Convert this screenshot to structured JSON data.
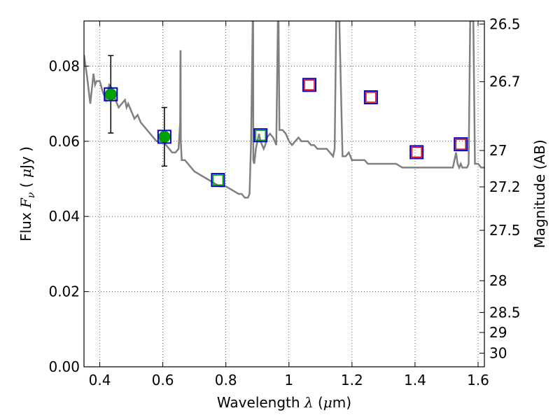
{
  "chart_data": {
    "type": "scatter",
    "xlabel_parts": {
      "pre": "Wavelength ",
      "lambda": "λ",
      "open": " (",
      "mu": "μ",
      "unit": "m)"
    },
    "ylabel_parts": {
      "pre": "Flux ",
      "F": "F",
      "nu": "ν",
      "open": " ( ",
      "mu": "μ",
      "unit": "Jy )"
    },
    "y2label": "Magnitude (AB)",
    "xlim": [
      0.35,
      1.62
    ],
    "ylim": [
      0.0,
      0.092
    ],
    "grid": true,
    "x_ticks": [
      {
        "value": 0.4,
        "label": "0.4"
      },
      {
        "value": 0.6,
        "label": "0.6"
      },
      {
        "value": 0.8,
        "label": "0.8"
      },
      {
        "value": 1.0,
        "label": "1"
      },
      {
        "value": 1.2,
        "label": "1.2"
      },
      {
        "value": 1.4,
        "label": "1.4"
      },
      {
        "value": 1.6,
        "label": "1.6"
      }
    ],
    "y_ticks": [
      {
        "value": 0.0,
        "label": "0.00"
      },
      {
        "value": 0.02,
        "label": "0.02"
      },
      {
        "value": 0.04,
        "label": "0.04"
      },
      {
        "value": 0.06,
        "label": "0.06"
      },
      {
        "value": 0.08,
        "label": "0.08"
      }
    ],
    "y2_ticks": [
      {
        "mag": 26.5,
        "label": "26.5"
      },
      {
        "mag": 26.7,
        "label": "26.7"
      },
      {
        "mag": 27.0,
        "label": "27"
      },
      {
        "mag": 27.2,
        "label": "27.2"
      },
      {
        "mag": 27.5,
        "label": "27.5"
      },
      {
        "mag": 28.0,
        "label": "28"
      },
      {
        "mag": 28.5,
        "label": "28.5"
      },
      {
        "mag": 29.0,
        "label": "29"
      },
      {
        "mag": 30.0,
        "label": "30"
      }
    ],
    "sed_model": {
      "name": "template spectrum",
      "color": "#808080",
      "x": [
        0.35,
        0.36,
        0.37,
        0.375,
        0.38,
        0.385,
        0.39,
        0.4,
        0.41,
        0.42,
        0.43,
        0.44,
        0.45,
        0.46,
        0.47,
        0.48,
        0.485,
        0.49,
        0.5,
        0.51,
        0.52,
        0.53,
        0.54,
        0.55,
        0.56,
        0.57,
        0.58,
        0.59,
        0.6,
        0.61,
        0.62,
        0.63,
        0.64,
        0.65,
        0.655,
        0.656,
        0.6565,
        0.657,
        0.66,
        0.67,
        0.68,
        0.69,
        0.7,
        0.72,
        0.74,
        0.76,
        0.78,
        0.8,
        0.82,
        0.84,
        0.85,
        0.86,
        0.87,
        0.875,
        0.88,
        0.885,
        0.886,
        0.8865,
        0.887,
        0.89,
        0.895,
        0.9,
        0.905,
        0.91,
        0.92,
        0.925,
        0.93,
        0.94,
        0.95,
        0.96,
        0.965,
        0.966,
        0.967,
        0.97,
        0.98,
        0.99,
        1.0,
        1.01,
        1.02,
        1.03,
        1.04,
        1.05,
        1.06,
        1.07,
        1.08,
        1.09,
        1.1,
        1.11,
        1.12,
        1.13,
        1.14,
        1.145,
        1.15,
        1.155,
        1.16,
        1.17,
        1.18,
        1.19,
        1.195,
        1.2,
        1.21,
        1.22,
        1.23,
        1.24,
        1.25,
        1.26,
        1.27,
        1.28,
        1.3,
        1.32,
        1.34,
        1.36,
        1.38,
        1.4,
        1.42,
        1.44,
        1.46,
        1.48,
        1.5,
        1.52,
        1.53,
        1.535,
        1.54,
        1.545,
        1.55,
        1.56,
        1.565,
        1.57,
        1.575,
        1.58,
        1.585,
        1.59,
        1.6,
        1.61,
        1.62
      ],
      "y": [
        0.083,
        0.077,
        0.07,
        0.074,
        0.078,
        0.075,
        0.076,
        0.076,
        0.073,
        0.071,
        0.075,
        0.074,
        0.071,
        0.069,
        0.07,
        0.071,
        0.069,
        0.07,
        0.068,
        0.066,
        0.067,
        0.065,
        0.064,
        0.063,
        0.062,
        0.061,
        0.06,
        0.06,
        0.06,
        0.059,
        0.058,
        0.057,
        0.057,
        0.058,
        0.065,
        0.084,
        0.084,
        0.06,
        0.055,
        0.055,
        0.054,
        0.053,
        0.052,
        0.051,
        0.05,
        0.049,
        0.048,
        0.048,
        0.047,
        0.046,
        0.046,
        0.045,
        0.045,
        0.046,
        0.06,
        0.092,
        0.092,
        0.092,
        0.055,
        0.054,
        0.058,
        0.06,
        0.062,
        0.06,
        0.058,
        0.059,
        0.061,
        0.062,
        0.061,
        0.059,
        0.092,
        0.092,
        0.092,
        0.063,
        0.063,
        0.062,
        0.06,
        0.059,
        0.06,
        0.061,
        0.06,
        0.06,
        0.06,
        0.059,
        0.059,
        0.058,
        0.058,
        0.058,
        0.058,
        0.057,
        0.056,
        0.058,
        0.092,
        0.092,
        0.092,
        0.056,
        0.056,
        0.057,
        0.056,
        0.055,
        0.055,
        0.055,
        0.055,
        0.055,
        0.054,
        0.054,
        0.054,
        0.054,
        0.054,
        0.054,
        0.054,
        0.053,
        0.053,
        0.053,
        0.053,
        0.053,
        0.053,
        0.053,
        0.053,
        0.053,
        0.057,
        0.054,
        0.053,
        0.054,
        0.053,
        0.053,
        0.053,
        0.054,
        0.092,
        0.092,
        0.092,
        0.054,
        0.054,
        0.053,
        0.053
      ]
    },
    "observed_points": {
      "name": "detections",
      "color": "#00a000",
      "x": [
        0.435,
        0.605
      ],
      "y": [
        0.0725,
        0.0612
      ],
      "yerr": [
        0.0103,
        0.0078
      ]
    },
    "model_photometry": {
      "name": "model fluxes",
      "color": "#0000cc",
      "x": [
        0.435,
        0.605,
        0.775,
        0.91,
        1.065,
        1.26,
        1.405,
        1.545
      ],
      "y": [
        0.0725,
        0.0612,
        0.0497,
        0.0616,
        0.075,
        0.0717,
        0.0571,
        0.0592
      ]
    },
    "green_open_markers": {
      "name": "band fluxes (optical)",
      "color": "#00a000",
      "x": [
        0.775,
        0.91
      ],
      "y": [
        0.0497,
        0.0616
      ]
    },
    "red_open_markers": {
      "name": "band fluxes (near-IR)",
      "color": "#dd0000",
      "x": [
        1.065,
        1.26,
        1.405,
        1.545
      ],
      "y": [
        0.075,
        0.0717,
        0.0571,
        0.0592
      ]
    }
  }
}
